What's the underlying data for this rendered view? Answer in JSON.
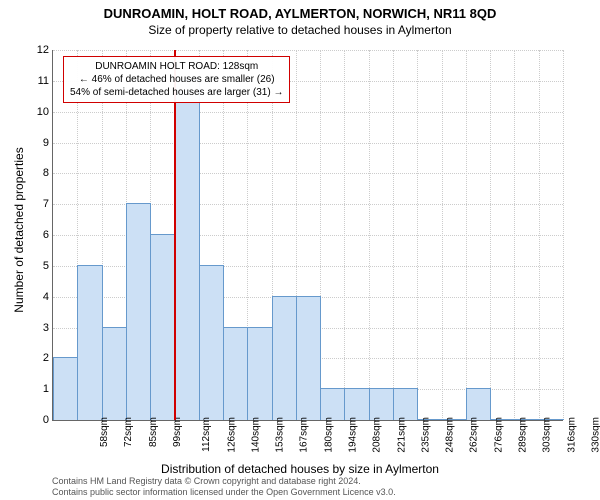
{
  "title": "DUNROAMIN, HOLT ROAD, AYLMERTON, NORWICH, NR11 8QD",
  "subtitle": "Size of property relative to detached houses in Aylmerton",
  "ylabel": "Number of detached properties",
  "xlabel": "Distribution of detached houses by size in Aylmerton",
  "chart": {
    "type": "histogram",
    "ymax": 12,
    "ytick_step": 1,
    "categories": [
      "58sqm",
      "72sqm",
      "85sqm",
      "99sqm",
      "112sqm",
      "126sqm",
      "140sqm",
      "153sqm",
      "167sqm",
      "180sqm",
      "194sqm",
      "208sqm",
      "221sqm",
      "235sqm",
      "248sqm",
      "262sqm",
      "276sqm",
      "289sqm",
      "303sqm",
      "316sqm",
      "330sqm"
    ],
    "values": [
      2,
      5,
      3,
      7,
      6,
      11,
      5,
      3,
      3,
      4,
      4,
      1,
      1,
      1,
      1,
      0,
      0,
      1,
      0,
      0,
      0
    ],
    "bar_color": "#cce0f5",
    "bar_border": "#6699cc",
    "grid_color": "#cccccc",
    "highlight_index": 5,
    "highlight_color": "#d00000",
    "bar_width_ratio": 1.0
  },
  "callout": {
    "line1": "DUNROAMIN HOLT ROAD: 128sqm",
    "line2": "← 46% of detached houses are smaller (26)",
    "line3": "54% of semi-detached houses are larger (31) →"
  },
  "attribution": {
    "line1": "Contains HM Land Registry data © Crown copyright and database right 2024.",
    "line2": "Contains public sector information licensed under the Open Government Licence v3.0."
  }
}
